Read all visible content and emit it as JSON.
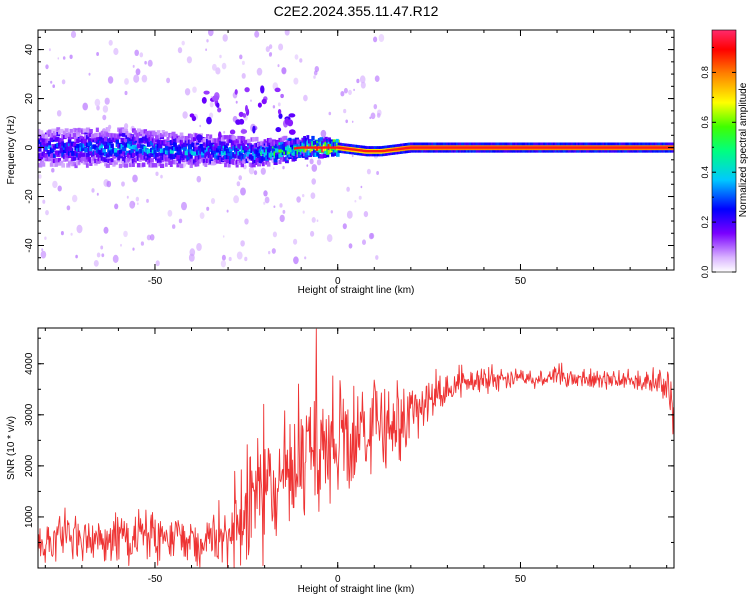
{
  "title": "C2E2.2024.355.11.47.R12",
  "chart_data": [
    {
      "type": "heatmap",
      "xlabel": "Height of straight line (km)",
      "ylabel": "Frequency (Hz)",
      "xlim": [
        -82,
        92
      ],
      "ylim": [
        -50,
        48
      ],
      "xticks": [
        -50,
        0,
        50
      ],
      "yticks": [
        -40,
        -20,
        0,
        20,
        40
      ],
      "description_band": "Energy concentrated near 0 Hz across all heights; broad (about ±8 Hz) and noisy below -10 km, narrow (about ±1.5 Hz) and strong above 0 km, with a small dip near 10 km",
      "band": [
        {
          "x": -82,
          "center": 0,
          "halfwidth": 6,
          "level": 0.25
        },
        {
          "x": -60,
          "center": 0,
          "halfwidth": 6,
          "level": 0.3
        },
        {
          "x": -40,
          "center": -1,
          "halfwidth": 5,
          "level": 0.3
        },
        {
          "x": -20,
          "center": -2,
          "halfwidth": 4,
          "level": 0.35
        },
        {
          "x": -10,
          "center": 0,
          "halfwidth": 3,
          "level": 0.55
        },
        {
          "x": 0,
          "center": 0,
          "halfwidth": 1.5,
          "level": 0.9
        },
        {
          "x": 8,
          "center": -1.5,
          "halfwidth": 1.5,
          "level": 0.85
        },
        {
          "x": 12,
          "center": -1.5,
          "halfwidth": 1.5,
          "level": 0.85
        },
        {
          "x": 20,
          "center": 0,
          "halfwidth": 1.5,
          "level": 0.95
        },
        {
          "x": 92,
          "center": 0,
          "halfwidth": 1.5,
          "level": 0.95
        }
      ],
      "colorbar": {
        "label": "Normalized spectral amplitude",
        "range": [
          0.0,
          0.97
        ],
        "ticks": [
          "0.0",
          "0.2",
          "0.4",
          "0.6",
          "0.8"
        ],
        "tick_values": [
          0.0,
          0.2,
          0.4,
          0.6,
          0.8
        ]
      }
    },
    {
      "type": "line",
      "xlabel": "Height of straight line (km)",
      "ylabel": "SNR (10 * v/v)",
      "xlim": [
        -82,
        92
      ],
      "ylim": [
        0,
        4700
      ],
      "xticks": [
        -50,
        0,
        50
      ],
      "yticks": [
        1000,
        2000,
        3000,
        4000
      ],
      "color": "#ee3333",
      "trend": [
        {
          "x": -82,
          "y": 500
        },
        {
          "x": -60,
          "y": 550
        },
        {
          "x": -45,
          "y": 600
        },
        {
          "x": -30,
          "y": 500
        },
        {
          "x": -27,
          "y": 1200
        },
        {
          "x": -20,
          "y": 1500
        },
        {
          "x": -10,
          "y": 2000
        },
        {
          "x": 0,
          "y": 2500
        },
        {
          "x": 10,
          "y": 2700
        },
        {
          "x": 20,
          "y": 3000
        },
        {
          "x": 25,
          "y": 3300
        },
        {
          "x": 35,
          "y": 3650
        },
        {
          "x": 50,
          "y": 3750
        },
        {
          "x": 70,
          "y": 3680
        },
        {
          "x": 88,
          "y": 3650
        },
        {
          "x": 92,
          "y": 3200
        }
      ],
      "noise": [
        {
          "x": -82,
          "amp": 450
        },
        {
          "x": -30,
          "amp": 550
        },
        {
          "x": -27,
          "amp": 1300
        },
        {
          "x": -10,
          "amp": 1200
        },
        {
          "x": 10,
          "amp": 1000
        },
        {
          "x": 20,
          "amp": 700
        },
        {
          "x": 27,
          "amp": 300
        },
        {
          "x": 50,
          "amp": 200
        },
        {
          "x": 88,
          "amp": 200
        },
        {
          "x": 92,
          "amp": 800
        }
      ]
    }
  ]
}
